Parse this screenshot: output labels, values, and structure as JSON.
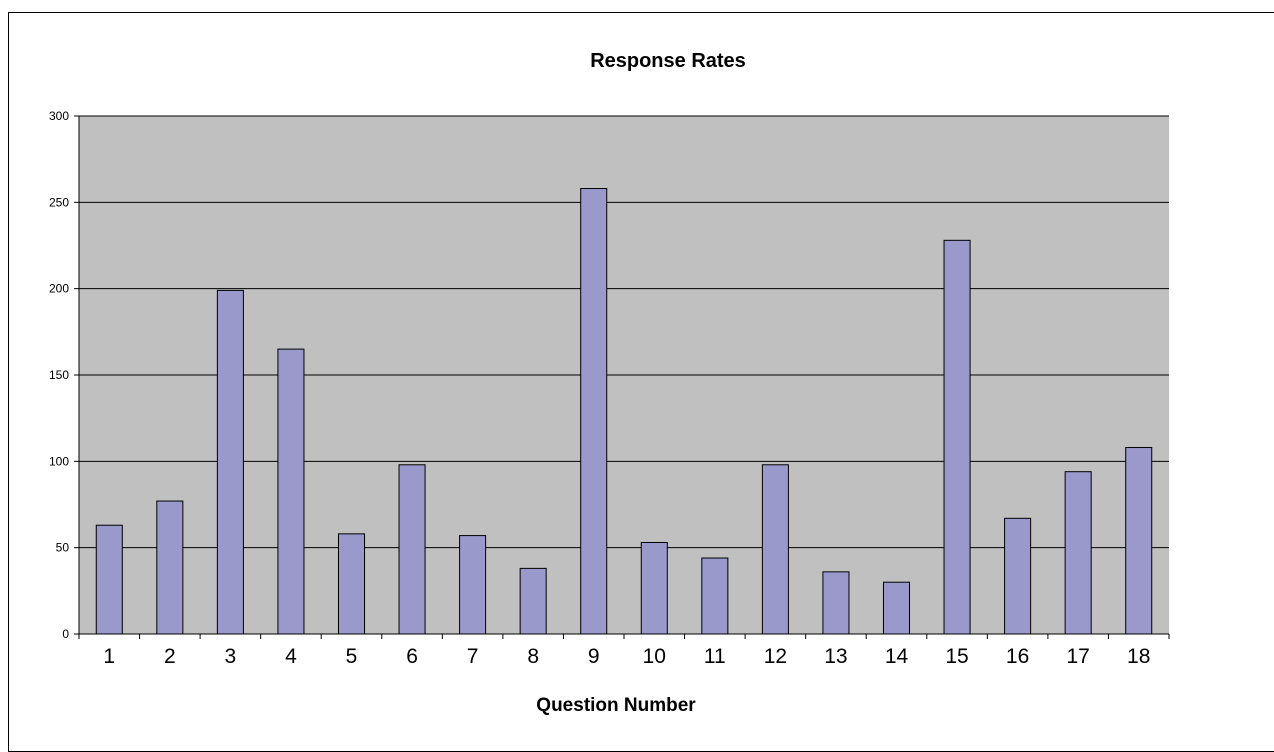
{
  "chart_data": {
    "type": "bar",
    "title": "Response Rates",
    "xlabel": "Question Number",
    "ylabel": "",
    "ylim": [
      0,
      300
    ],
    "yticks": [
      0,
      50,
      100,
      150,
      200,
      250,
      300
    ],
    "grid": true,
    "legend": "none",
    "categories": [
      "1",
      "2",
      "3",
      "4",
      "5",
      "6",
      "7",
      "8",
      "9",
      "10",
      "11",
      "12",
      "13",
      "14",
      "15",
      "16",
      "17",
      "18"
    ],
    "values": [
      63,
      77,
      199,
      165,
      58,
      98,
      57,
      38,
      258,
      53,
      44,
      98,
      36,
      30,
      228,
      67,
      94,
      108
    ],
    "colors": {
      "plot_background": "#c0c0c0",
      "bar_fill": "#9999cc",
      "bar_stroke": "#000000",
      "gridline": "#000000"
    }
  }
}
